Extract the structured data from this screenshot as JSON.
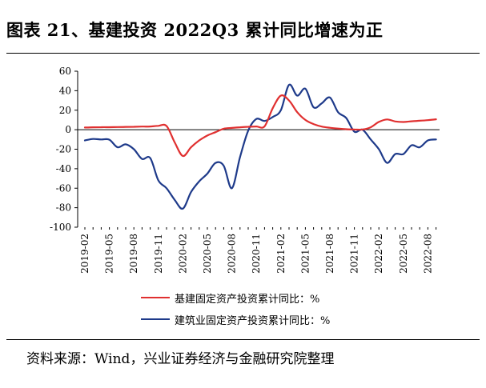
{
  "title": "图表 21、基建投资 2022Q3 累计同比增速为正",
  "source": "资料来源：Wind，兴业证券经济与金融研究院整理",
  "chart_data": {
    "type": "line",
    "title": "图表 21、基建投资 2022Q3 累计同比增速为正",
    "xlabel": "",
    "ylabel": "",
    "ylim": [
      -100,
      60
    ],
    "yticks": [
      -100,
      -80,
      -60,
      -40,
      -20,
      0,
      20,
      40,
      60
    ],
    "xticks": [
      "2019-02",
      "2019-05",
      "2019-08",
      "2019-11",
      "2020-02",
      "2020-05",
      "2020-08",
      "2020-11",
      "2021-02",
      "2021-05",
      "2021-08",
      "2021-11",
      "2022-02",
      "2022-05",
      "2022-08"
    ],
    "x": [
      "2019-02",
      "2019-03",
      "2019-04",
      "2019-05",
      "2019-06",
      "2019-07",
      "2019-08",
      "2019-09",
      "2019-10",
      "2019-11",
      "2019-12",
      "2020-01",
      "2020-02",
      "2020-03",
      "2020-04",
      "2020-05",
      "2020-06",
      "2020-07",
      "2020-08",
      "2020-09",
      "2020-10",
      "2020-11",
      "2020-12",
      "2021-01",
      "2021-02",
      "2021-03",
      "2021-04",
      "2021-05",
      "2021-06",
      "2021-07",
      "2021-08",
      "2021-09",
      "2021-10",
      "2021-11",
      "2021-12",
      "2022-01",
      "2022-02",
      "2022-03",
      "2022-04",
      "2022-05",
      "2022-06",
      "2022-07",
      "2022-08",
      "2022-09"
    ],
    "series": [
      {
        "name": "基建固定资产投资累计同比：%",
        "color": "#e03030",
        "values": [
          2.2,
          2.5,
          2.6,
          2.6,
          2.7,
          2.9,
          3.0,
          3.2,
          3.3,
          4.0,
          3.8,
          -13,
          -27,
          -18,
          -11,
          -6,
          -2.5,
          1.0,
          1.8,
          2.5,
          3.0,
          3.3,
          3.4,
          22,
          35,
          30,
          18,
          10,
          5.8,
          3.2,
          2.0,
          1.2,
          0.5,
          0.2,
          0.2,
          2.5,
          8.0,
          10.5,
          8.5,
          7.9,
          8.6,
          9.2,
          9.8,
          10.7
        ]
      },
      {
        "name": "建筑业固定资产投资累计同比：%",
        "color": "#1e3a8a",
        "values": [
          -11,
          -9.5,
          -10,
          -10.2,
          -18,
          -15,
          -20,
          -30,
          -29,
          -52,
          -60,
          -72,
          -81,
          -64,
          -53,
          -45,
          -34,
          -37,
          -60,
          -28,
          -1,
          11,
          9,
          13,
          20,
          46,
          35,
          42,
          23,
          27,
          33,
          18,
          12,
          -2,
          0,
          -10,
          -20,
          -34,
          -25,
          -25,
          -16,
          -18,
          -11,
          -10
        ]
      }
    ]
  },
  "legend": [
    "基建固定资产投资累计同比：%",
    "建筑业固定资产投资累计同比：%"
  ]
}
